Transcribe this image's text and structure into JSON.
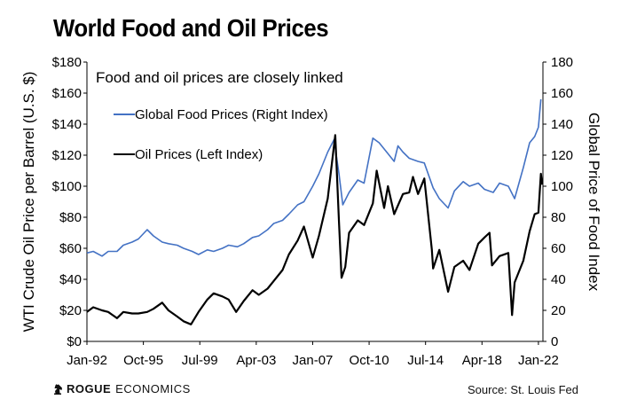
{
  "title": "World Food and Oil Prices",
  "brand": {
    "name_bold": "ROGUE",
    "name_rest": "ECONOMICS",
    "icon": "knight-chess-icon"
  },
  "source": "Source: St. Louis Fed",
  "chart_data": {
    "type": "line",
    "annotation": "Food and oil prices are closely linked",
    "xlabel": "",
    "x_ticks": [
      "Jan-92",
      "Oct-95",
      "Jul-99",
      "Apr-03",
      "Jan-07",
      "Oct-10",
      "Jul-14",
      "Apr-18",
      "Jan-22"
    ],
    "ylabel_left": "WTI Crude Oil Price per Barrel (U.S. $)",
    "ylabel_right": "Global Price of Food Index",
    "ylim_left": [
      0,
      180
    ],
    "ylim_right": [
      0,
      180
    ],
    "y_ticks_left": [
      "$0",
      "$20",
      "$40",
      "$60",
      "$80",
      "$100",
      "$120",
      "$140",
      "$160",
      "$180"
    ],
    "y_ticks_right": [
      "0",
      "20",
      "40",
      "60",
      "80",
      "100",
      "120",
      "140",
      "160",
      "180"
    ],
    "grid": false,
    "legend_position": "top-left",
    "series": [
      {
        "name": "Global Food Prices (Right Index)",
        "axis": "right",
        "color": "#4472C4",
        "points": [
          [
            "1992-01",
            57
          ],
          [
            "1992-06",
            58
          ],
          [
            "1993-01",
            55
          ],
          [
            "1993-06",
            58
          ],
          [
            "1994-01",
            58
          ],
          [
            "1994-06",
            62
          ],
          [
            "1995-01",
            64
          ],
          [
            "1995-06",
            66
          ],
          [
            "1996-01",
            72
          ],
          [
            "1996-06",
            68
          ],
          [
            "1997-01",
            64
          ],
          [
            "1997-06",
            63
          ],
          [
            "1998-01",
            62
          ],
          [
            "1998-06",
            60
          ],
          [
            "1999-01",
            58
          ],
          [
            "1999-06",
            56
          ],
          [
            "2000-01",
            59
          ],
          [
            "2000-06",
            58
          ],
          [
            "2001-01",
            60
          ],
          [
            "2001-06",
            62
          ],
          [
            "2002-01",
            61
          ],
          [
            "2002-06",
            63
          ],
          [
            "2003-01",
            67
          ],
          [
            "2003-06",
            68
          ],
          [
            "2004-01",
            72
          ],
          [
            "2004-06",
            76
          ],
          [
            "2005-01",
            78
          ],
          [
            "2005-06",
            82
          ],
          [
            "2006-01",
            88
          ],
          [
            "2006-06",
            90
          ],
          [
            "2007-01",
            100
          ],
          [
            "2007-06",
            108
          ],
          [
            "2008-01",
            122
          ],
          [
            "2008-06",
            130
          ],
          [
            "2008-10",
            108
          ],
          [
            "2009-01",
            88
          ],
          [
            "2009-06",
            96
          ],
          [
            "2010-01",
            104
          ],
          [
            "2010-06",
            102
          ],
          [
            "2011-01",
            131
          ],
          [
            "2011-06",
            128
          ],
          [
            "2012-01",
            121
          ],
          [
            "2012-06",
            116
          ],
          [
            "2012-09",
            126
          ],
          [
            "2013-01",
            122
          ],
          [
            "2013-06",
            118
          ],
          [
            "2014-01",
            116
          ],
          [
            "2014-06",
            115
          ],
          [
            "2015-01",
            99
          ],
          [
            "2015-06",
            92
          ],
          [
            "2016-01",
            86
          ],
          [
            "2016-06",
            97
          ],
          [
            "2017-01",
            103
          ],
          [
            "2017-06",
            100
          ],
          [
            "2018-01",
            102
          ],
          [
            "2018-06",
            98
          ],
          [
            "2019-01",
            96
          ],
          [
            "2019-06",
            102
          ],
          [
            "2020-01",
            100
          ],
          [
            "2020-06",
            92
          ],
          [
            "2021-01",
            112
          ],
          [
            "2021-06",
            128
          ],
          [
            "2021-10",
            132
          ],
          [
            "2022-01",
            138
          ],
          [
            "2022-03",
            156
          ]
        ]
      },
      {
        "name": "Oil Prices (Left Index)",
        "axis": "left",
        "color": "#000000",
        "points": [
          [
            "1992-01",
            19
          ],
          [
            "1992-06",
            22
          ],
          [
            "1993-01",
            20
          ],
          [
            "1993-06",
            19
          ],
          [
            "1994-01",
            15
          ],
          [
            "1994-06",
            19
          ],
          [
            "1995-01",
            18
          ],
          [
            "1995-06",
            18
          ],
          [
            "1996-01",
            19
          ],
          [
            "1996-06",
            21
          ],
          [
            "1997-01",
            25
          ],
          [
            "1997-06",
            20
          ],
          [
            "1998-01",
            16
          ],
          [
            "1998-06",
            13
          ],
          [
            "1998-12",
            11
          ],
          [
            "1999-06",
            19
          ],
          [
            "2000-01",
            27
          ],
          [
            "2000-06",
            31
          ],
          [
            "2001-01",
            29
          ],
          [
            "2001-06",
            27
          ],
          [
            "2001-12",
            19
          ],
          [
            "2002-06",
            26
          ],
          [
            "2003-01",
            33
          ],
          [
            "2003-06",
            30
          ],
          [
            "2004-01",
            34
          ],
          [
            "2004-06",
            39
          ],
          [
            "2005-01",
            46
          ],
          [
            "2005-06",
            56
          ],
          [
            "2006-01",
            65
          ],
          [
            "2006-06",
            74
          ],
          [
            "2007-01",
            54
          ],
          [
            "2007-06",
            68
          ],
          [
            "2008-01",
            92
          ],
          [
            "2008-07",
            133
          ],
          [
            "2008-10",
            77
          ],
          [
            "2008-12",
            41
          ],
          [
            "2009-03",
            48
          ],
          [
            "2009-06",
            70
          ],
          [
            "2010-01",
            78
          ],
          [
            "2010-06",
            75
          ],
          [
            "2011-01",
            89
          ],
          [
            "2011-04",
            110
          ],
          [
            "2011-10",
            86
          ],
          [
            "2012-01",
            100
          ],
          [
            "2012-06",
            82
          ],
          [
            "2013-01",
            95
          ],
          [
            "2013-06",
            96
          ],
          [
            "2013-09",
            106
          ],
          [
            "2014-01",
            95
          ],
          [
            "2014-06",
            105
          ],
          [
            "2014-12",
            59
          ],
          [
            "2015-01",
            47
          ],
          [
            "2015-06",
            59
          ],
          [
            "2016-01",
            32
          ],
          [
            "2016-06",
            48
          ],
          [
            "2017-01",
            52
          ],
          [
            "2017-06",
            46
          ],
          [
            "2018-01",
            63
          ],
          [
            "2018-06",
            67
          ],
          [
            "2018-10",
            70
          ],
          [
            "2018-12",
            49
          ],
          [
            "2019-06",
            55
          ],
          [
            "2020-01",
            57
          ],
          [
            "2020-04",
            17
          ],
          [
            "2020-06",
            38
          ],
          [
            "2021-01",
            52
          ],
          [
            "2021-06",
            71
          ],
          [
            "2021-10",
            82
          ],
          [
            "2022-01",
            83
          ],
          [
            "2022-03",
            108
          ],
          [
            "2022-04",
            101
          ]
        ]
      }
    ]
  }
}
